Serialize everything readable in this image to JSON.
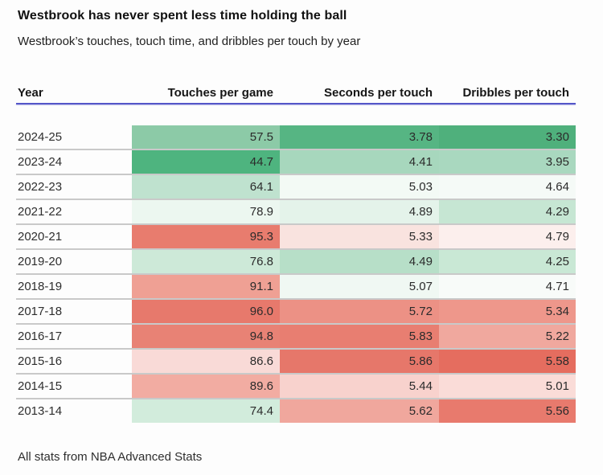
{
  "title": "Westbrook has never spent less time holding the ball",
  "subtitle": "Westbrook’s touches, touch time, and dribbles per touch by year",
  "footer": "All stats from NBA Advanced Stats",
  "colors": {
    "header_underline": "#5456c8",
    "row_separator": "#c9c9c9",
    "background": "#fdfdfd"
  },
  "chart_data": {
    "type": "table",
    "subtype": "heatmap-table",
    "columns": [
      "Year",
      "Touches per game",
      "Seconds per touch",
      "Dribbles per touch"
    ],
    "legend_note": "cell shading: green = low (less ball holding), red = high; each column scaled independently",
    "rows": [
      {
        "year": "2024-25",
        "touches": "57.5",
        "seconds": "3.78",
        "dribbles": "3.30",
        "cell_colors": [
          "#8ccaa7",
          "#56b583",
          "#4fb07c"
        ]
      },
      {
        "year": "2023-24",
        "touches": "44.7",
        "seconds": "4.41",
        "dribbles": "3.95",
        "cell_colors": [
          "#4eb47f",
          "#a7d7bd",
          "#a9d8bf"
        ]
      },
      {
        "year": "2022-23",
        "touches": "64.1",
        "seconds": "5.03",
        "dribbles": "4.64",
        "cell_colors": [
          "#bfe2cf",
          "#f3faf5",
          "#f5faf7"
        ]
      },
      {
        "year": "2021-22",
        "touches": "78.9",
        "seconds": "4.89",
        "dribbles": "4.29",
        "cell_colors": [
          "#ecf7f0",
          "#e4f3ea",
          "#c6e6d3"
        ]
      },
      {
        "year": "2020-21",
        "touches": "95.3",
        "seconds": "5.33",
        "dribbles": "4.79",
        "cell_colors": [
          "#e87c6e",
          "#f9e3df",
          "#fcefed"
        ]
      },
      {
        "year": "2019-20",
        "touches": "76.8",
        "seconds": "4.49",
        "dribbles": "4.25",
        "cell_colors": [
          "#cde9d8",
          "#b7dfc8",
          "#c9e8d5"
        ]
      },
      {
        "year": "2018-19",
        "touches": "91.1",
        "seconds": "5.07",
        "dribbles": "4.71",
        "cell_colors": [
          "#efa094",
          "#f0f8f3",
          "#f8fbf9"
        ]
      },
      {
        "year": "2017-18",
        "touches": "96.0",
        "seconds": "5.72",
        "dribbles": "5.34",
        "cell_colors": [
          "#e7796c",
          "#ec9185",
          "#ee978b"
        ]
      },
      {
        "year": "2016-17",
        "touches": "94.8",
        "seconds": "5.83",
        "dribbles": "5.22",
        "cell_colors": [
          "#e88275",
          "#e87e71",
          "#f0a89e"
        ]
      },
      {
        "year": "2015-16",
        "touches": "86.6",
        "seconds": "5.86",
        "dribbles": "5.58",
        "cell_colors": [
          "#f9dad7",
          "#e6776a",
          "#e56d5f"
        ]
      },
      {
        "year": "2014-15",
        "touches": "89.6",
        "seconds": "5.44",
        "dribbles": "5.01",
        "cell_colors": [
          "#f2aca2",
          "#f8d2cd",
          "#fadcd8"
        ]
      },
      {
        "year": "2013-14",
        "touches": "74.4",
        "seconds": "5.62",
        "dribbles": "5.56",
        "cell_colors": [
          "#d2ecdc",
          "#f0a79d",
          "#e87a6d"
        ]
      }
    ]
  }
}
